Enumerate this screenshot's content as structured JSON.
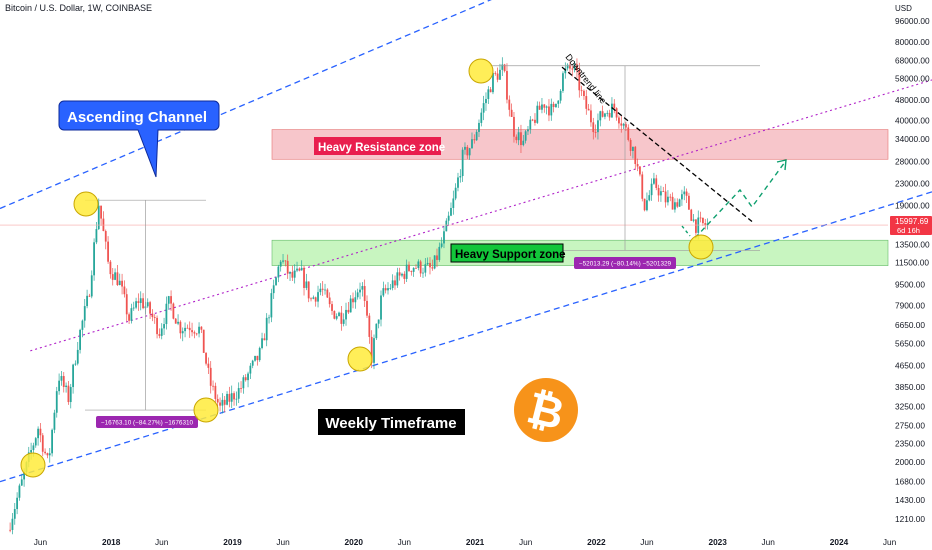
{
  "header": {
    "symbol": "Bitcoin / U.S. Dollar, 1W, COINBASE",
    "currency": "USD"
  },
  "price_badge": {
    "price": "15997.69",
    "countdown": "6d 16h",
    "color": "#f23645"
  },
  "chart_data": {
    "type": "candlestick",
    "title": "",
    "y_scale": "log",
    "x_range": [
      "2017-02",
      "2024-12"
    ],
    "y_range": [
      1130,
      128000
    ],
    "grid": false,
    "y_ticks": [
      "96000.00",
      "80000.00",
      "68000.00",
      "58000.00",
      "48000.00",
      "40000.00",
      "34000.00",
      "28000.00",
      "23000.00",
      "19000.00",
      "13500.00",
      "11500.00",
      "9500.00",
      "7900.00",
      "6650.00",
      "5650.00",
      "4650.00",
      "3850.00",
      "3250.00",
      "2750.00",
      "2350.00",
      "2000.00",
      "1680.00",
      "1430.00",
      "1210.00"
    ],
    "x_ticks": [
      "Jun",
      "2018",
      "Jun",
      "2019",
      "Jun",
      "2020",
      "Jun",
      "2021",
      "Jun",
      "2022",
      "Jun",
      "2023",
      "Jun",
      "2024",
      "Jun"
    ],
    "price_path": [
      [
        "2017-03",
        1100
      ],
      [
        "2017-05",
        2000
      ],
      [
        "2017-06",
        2700
      ],
      [
        "2017-07",
        1950
      ],
      [
        "2017-08",
        4300
      ],
      [
        "2017-09",
        3500
      ],
      [
        "2017-10",
        5900
      ],
      [
        "2017-11",
        8600
      ],
      [
        "2017-12",
        19300
      ],
      [
        "2018-01",
        11000
      ],
      [
        "2018-02",
        9800
      ],
      [
        "2018-03",
        7000
      ],
      [
        "2018-04",
        8400
      ],
      [
        "2018-05",
        7500
      ],
      [
        "2018-06",
        6300
      ],
      [
        "2018-07",
        8200
      ],
      [
        "2018-08",
        6500
      ],
      [
        "2018-09",
        6600
      ],
      [
        "2018-10",
        6400
      ],
      [
        "2018-11",
        4000
      ],
      [
        "2018-12",
        3200
      ],
      [
        "2019-02",
        3800
      ],
      [
        "2019-04",
        5200
      ],
      [
        "2019-05",
        8000
      ],
      [
        "2019-06",
        12000
      ],
      [
        "2019-07",
        10000
      ],
      [
        "2019-08",
        10500
      ],
      [
        "2019-09",
        8300
      ],
      [
        "2019-10",
        9200
      ],
      [
        "2019-11",
        7500
      ],
      [
        "2019-12",
        7200
      ],
      [
        "2020-02",
        9600
      ],
      [
        "2020-03",
        5000
      ],
      [
        "2020-04",
        8600
      ],
      [
        "2020-05",
        9500
      ],
      [
        "2020-07",
        11200
      ],
      [
        "2020-09",
        10800
      ],
      [
        "2020-10",
        13800
      ],
      [
        "2020-11",
        19000
      ],
      [
        "2020-12",
        29000
      ],
      [
        "2021-01",
        33000
      ],
      [
        "2021-02",
        45000
      ],
      [
        "2021-03",
        58000
      ],
      [
        "2021-04",
        63000
      ],
      [
        "2021-05",
        37000
      ],
      [
        "2021-06",
        33000
      ],
      [
        "2021-07",
        40000
      ],
      [
        "2021-08",
        47000
      ],
      [
        "2021-09",
        43000
      ],
      [
        "2021-10",
        61000
      ],
      [
        "2021-11",
        64000
      ],
      [
        "2021-12",
        47000
      ],
      [
        "2022-01",
        38000
      ],
      [
        "2022-02",
        43000
      ],
      [
        "2022-03",
        45000
      ],
      [
        "2022-04",
        38000
      ],
      [
        "2022-05",
        30000
      ],
      [
        "2022-06",
        19000
      ],
      [
        "2022-07",
        23000
      ],
      [
        "2022-08",
        20000
      ],
      [
        "2022-09",
        19500
      ],
      [
        "2022-10",
        20500
      ],
      [
        "2022-11",
        16000
      ],
      [
        "2022-12",
        15998
      ]
    ],
    "current_price": 15997.69,
    "annotations": {
      "ascending_channel_label": "Ascending Channel",
      "heavy_resistance": "Heavy Resistance zone",
      "heavy_support": "Heavy Support zone",
      "downtrend": "Downtrend line",
      "timeframe": "Weekly Timeframe",
      "measure_2018": "−16763.10 (−84.27%) −1676310",
      "measure_2022": "−52013.29 (−80.14%) −5201329"
    },
    "zones": {
      "resistance": {
        "low": 28500,
        "high": 37000,
        "color": "#f7c6cb"
      },
      "support": {
        "low": 11200,
        "high": 14000,
        "color": "#c8f5c0"
      }
    }
  },
  "colors": {
    "up": "#26a69a",
    "down": "#ef5350",
    "channel": "#2962ff",
    "midline": "#b020c8",
    "projection": "#0e9f6e",
    "bitcoin": "#f7931a",
    "label_blue": "#2962ff",
    "label_red": "#e91e4e",
    "label_green": "#12c63a",
    "measure_purple": "#9c27b0"
  }
}
